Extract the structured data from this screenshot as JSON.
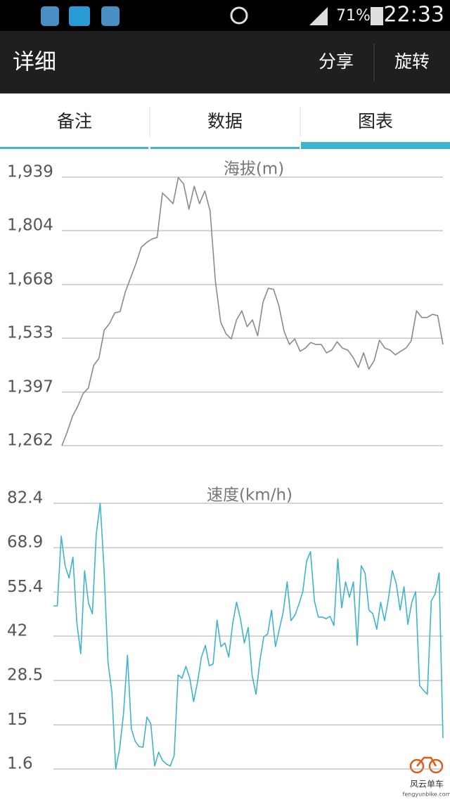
{
  "status_bar": {
    "battery": "71%",
    "time": "22:33"
  },
  "header": {
    "title": "详细",
    "actions": [
      "分享",
      "旋转"
    ]
  },
  "tabs": [
    "备注",
    "数据",
    "图表"
  ],
  "chart_data": [
    {
      "type": "line",
      "title": "海拔(m)",
      "color": "#8a8a8a",
      "grid": true,
      "ylim": [
        1262,
        1939
      ],
      "yticks": [
        {
          "value": 1262,
          "label": "1,262"
        },
        {
          "value": 1397,
          "label": "1,397"
        },
        {
          "value": 1533,
          "label": "1,533"
        },
        {
          "value": 1668,
          "label": "1,668"
        },
        {
          "value": 1804,
          "label": "1,804"
        },
        {
          "value": 1939,
          "label": "1,939"
        }
      ],
      "values": [
        1262,
        1296,
        1336,
        1361,
        1393,
        1407,
        1464,
        1482,
        1553,
        1570,
        1597,
        1600,
        1650,
        1686,
        1721,
        1762,
        1774,
        1783,
        1787,
        1899,
        1886,
        1872,
        1938,
        1922,
        1858,
        1916,
        1872,
        1904,
        1854,
        1677,
        1574,
        1544,
        1531,
        1579,
        1602,
        1562,
        1579,
        1539,
        1624,
        1659,
        1656,
        1615,
        1549,
        1517,
        1531,
        1500,
        1508,
        1522,
        1517,
        1517,
        1496,
        1503,
        1524,
        1508,
        1503,
        1485,
        1459,
        1496,
        1455,
        1476,
        1528,
        1508,
        1503,
        1491,
        1500,
        1508,
        1526,
        1602,
        1585,
        1585,
        1593,
        1590,
        1517
      ]
    },
    {
      "type": "line",
      "title": "速度(km/h)",
      "color": "#3fb4cc",
      "grid": true,
      "ylim": [
        1.6,
        82.4
      ],
      "yticks": [
        1.6,
        15,
        28.5,
        42,
        55.4,
        68.9,
        82.4
      ],
      "values": [
        51.2,
        51.2,
        72.4,
        63.4,
        59.7,
        66,
        46.3,
        36.7,
        61.9,
        52,
        48.8,
        73,
        82.4,
        62.3,
        34.1,
        24.9,
        1.6,
        7.8,
        18.5,
        36.2,
        13.8,
        10,
        8.4,
        8.2,
        17.4,
        15.3,
        2.5,
        6.7,
        4.2,
        3.1,
        2.5,
        5.7,
        30.2,
        29.2,
        32.8,
        29.2,
        22.1,
        28.1,
        35.6,
        39.2,
        33,
        33.5,
        46.9,
        38.8,
        39.9,
        35.6,
        45.6,
        52.3,
        47.3,
        39.9,
        44.6,
        30.2,
        24.3,
        34.5,
        41.8,
        42.6,
        49.9,
        38.8,
        44.1,
        49.5,
        58.5,
        46.7,
        48.4,
        51.6,
        55.5,
        64.9,
        67.7,
        52.7,
        47.8,
        47.8,
        47.3,
        48,
        45.2,
        65.5,
        50.6,
        58.5,
        53.8,
        58.5,
        39.2,
        63.4,
        61.2,
        49.9,
        48.8,
        44.1,
        52.3,
        46.7,
        53.3,
        61.9,
        58,
        49.9,
        57,
        45.6,
        52.3,
        55.5,
        27,
        25.5,
        24.3,
        52.7,
        54.8,
        61.2,
        11
      ]
    }
  ],
  "watermark": {
    "name": "风云单车",
    "url": "fengyunbike.com"
  }
}
